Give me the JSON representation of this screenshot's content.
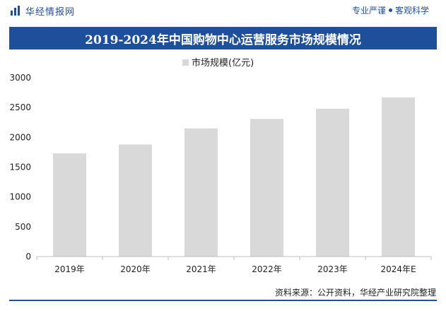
{
  "header": {
    "brand": "华经情报网",
    "slogan_left": "专业严谨",
    "slogan_right": "客观科学"
  },
  "chart_data": {
    "type": "bar",
    "title": "2019-2024年中国购物中心运营服务市场规模情况",
    "categories": [
      "2019年",
      "2020年",
      "2021年",
      "2022年",
      "2023年",
      "2024年E"
    ],
    "series": [
      {
        "name": "市场规模(亿元)",
        "values": [
          1730,
          1880,
          2150,
          2310,
          2480,
          2670
        ]
      }
    ],
    "ylim": [
      0,
      3000
    ],
    "yticks": [
      0,
      500,
      1000,
      1500,
      2000,
      2500,
      3000
    ],
    "legend_position": "top-center",
    "grid": false,
    "bar_color": "#d9d9d9",
    "legend_marker_color": "#d9d9d9"
  },
  "footer": {
    "source": "资料来源：公开资料，华经产业研究院整理"
  },
  "colors": {
    "brand": "#1f4e9a",
    "bar": "#d9d9d9"
  }
}
